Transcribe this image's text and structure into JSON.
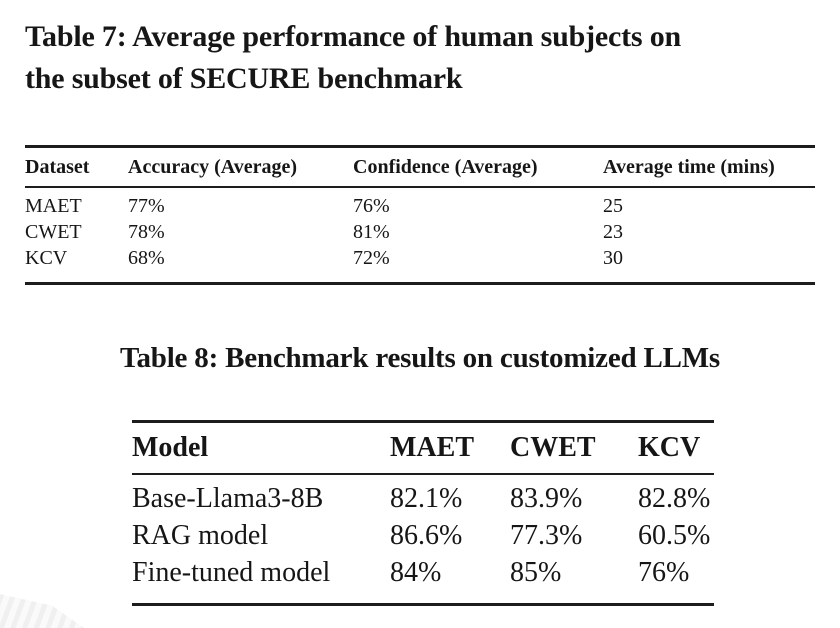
{
  "page": {
    "background": "#ffffff",
    "text_color": "#161616",
    "rule_color": "#1d1d1d"
  },
  "table7": {
    "caption_line1": "Table 7: Average performance of human subjects on",
    "caption_line2": "the subset of SECURE benchmark",
    "columns": [
      "Dataset",
      "Accuracy (Average)",
      "Confidence (Average)",
      "Average time (mins)"
    ],
    "rows": [
      {
        "dataset": "MAET",
        "accuracy": "77%",
        "confidence": "76%",
        "avg_time": "25"
      },
      {
        "dataset": "CWET",
        "accuracy": "78%",
        "confidence": "81%",
        "avg_time": "23"
      },
      {
        "dataset": "KCV",
        "accuracy": "68%",
        "confidence": "72%",
        "avg_time": "30"
      }
    ]
  },
  "table8": {
    "caption": "Table 8: Benchmark results on customized LLMs",
    "columns": [
      "Model",
      "MAET",
      "CWET",
      "KCV"
    ],
    "rows": [
      {
        "model": "Base-Llama3-8B",
        "maet": "82.1%",
        "cwet": "83.9%",
        "kcv": "82.8%"
      },
      {
        "model": "RAG model",
        "maet": "86.6%",
        "cwet": "77.3%",
        "kcv": "60.5%"
      },
      {
        "model": "Fine-tuned model",
        "maet": "84%",
        "cwet": "85%",
        "kcv": "76%"
      }
    ]
  }
}
